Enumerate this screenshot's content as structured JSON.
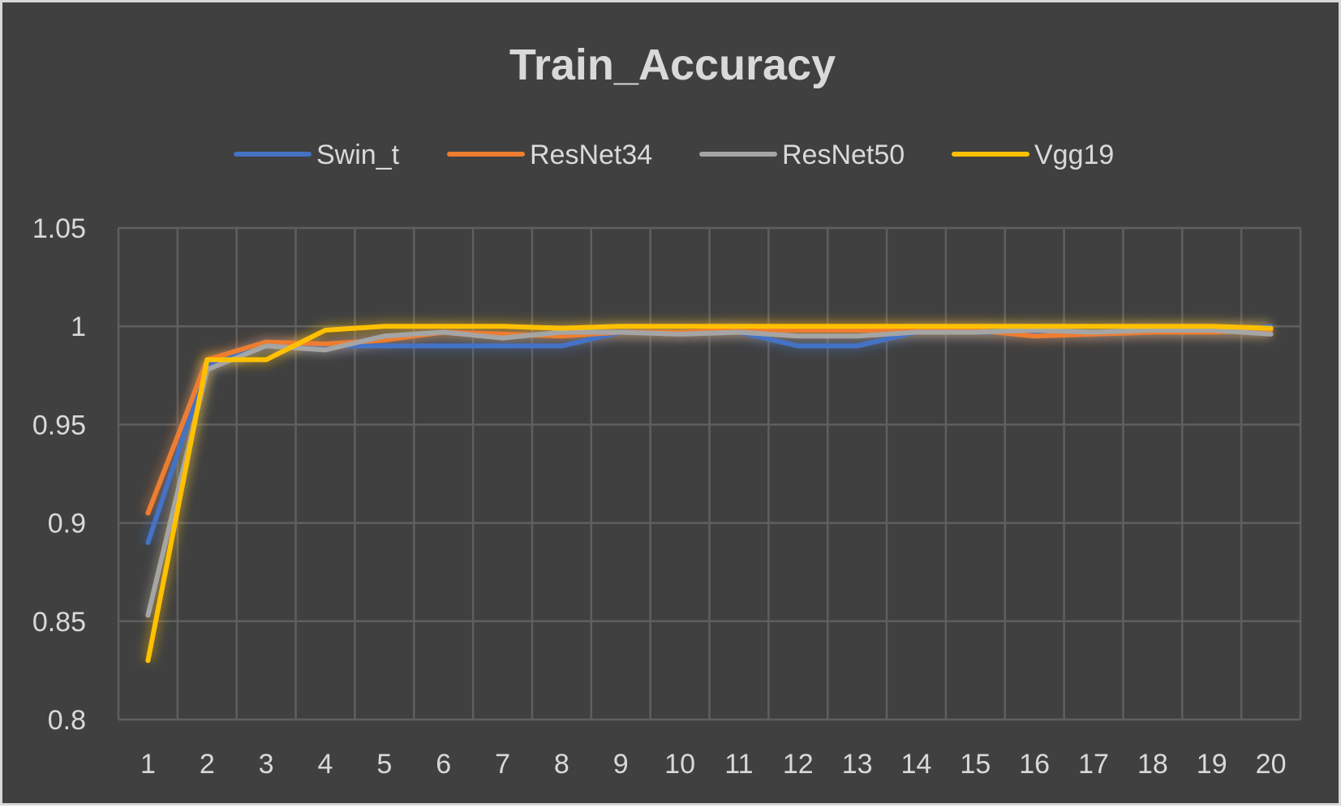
{
  "chart_data": {
    "type": "line",
    "title": "Train_Accuracy",
    "xlabel": "",
    "ylabel": "",
    "x": [
      1,
      2,
      3,
      4,
      5,
      6,
      7,
      8,
      9,
      10,
      11,
      12,
      13,
      14,
      15,
      16,
      17,
      18,
      19,
      20
    ],
    "ylim": [
      0.8,
      1.05
    ],
    "yticks": [
      "0.8",
      "0.85",
      "0.9",
      "0.95",
      "1",
      "1.05"
    ],
    "grid": true,
    "legend_position": "top",
    "background": "#404040",
    "series": [
      {
        "name": "Swin_t",
        "color": "#4472c4",
        "values": [
          0.89,
          0.98,
          0.99,
          0.99,
          0.99,
          0.99,
          0.99,
          0.99,
          0.997,
          0.997,
          0.997,
          0.99,
          0.99,
          0.997,
          0.997,
          0.997,
          0.997,
          0.997,
          0.997,
          1.0
        ]
      },
      {
        "name": "ResNet34",
        "color": "#ed7d31",
        "values": [
          0.905,
          0.983,
          0.992,
          0.991,
          0.993,
          0.997,
          0.996,
          0.995,
          0.997,
          0.997,
          0.998,
          0.998,
          0.998,
          0.998,
          0.998,
          0.995,
          0.996,
          0.997,
          0.997,
          0.998
        ]
      },
      {
        "name": "ResNet50",
        "color": "#a5a5a5",
        "values": [
          0.853,
          0.978,
          0.99,
          0.988,
          0.995,
          0.997,
          0.994,
          0.997,
          0.997,
          0.996,
          0.997,
          0.995,
          0.995,
          0.997,
          0.997,
          0.998,
          0.997,
          0.998,
          0.998,
          0.996
        ]
      },
      {
        "name": "Vgg19",
        "color": "#ffc000",
        "values": [
          0.83,
          0.983,
          0.983,
          0.998,
          1.0,
          1.0,
          1.0,
          0.999,
          1.0,
          1.0,
          1.0,
          1.0,
          1.0,
          1.0,
          1.0,
          1.0,
          1.0,
          1.0,
          1.0,
          0.999
        ]
      }
    ]
  }
}
